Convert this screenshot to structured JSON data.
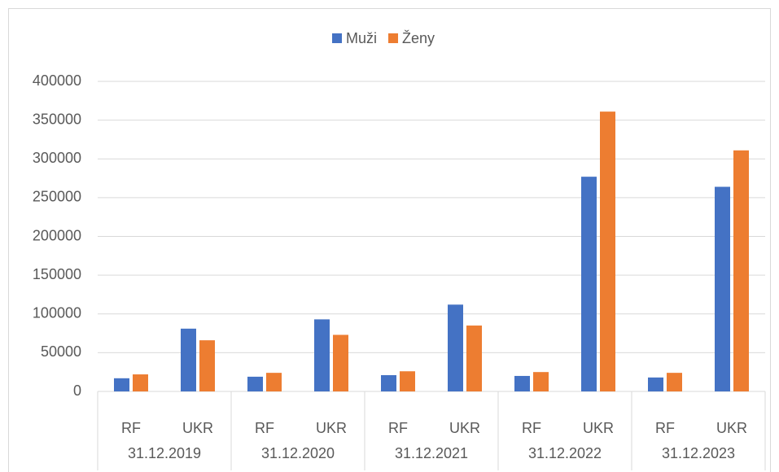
{
  "chart_data": {
    "type": "bar",
    "categories": [
      "RF",
      "UKR",
      "RF",
      "UKR",
      "RF",
      "UKR",
      "RF",
      "UKR",
      "RF",
      "UKR"
    ],
    "groups": [
      "31.12.2019",
      "31.12.2020",
      "31.12.2021",
      "31.12.2022",
      "31.12.2023"
    ],
    "series": [
      {
        "name": "Muži",
        "color": "#4472c4",
        "values": [
          17000,
          81000,
          19000,
          93000,
          21000,
          112000,
          20000,
          277000,
          18000,
          264000
        ]
      },
      {
        "name": "Ženy",
        "color": "#ed7d31",
        "values": [
          22000,
          66000,
          24000,
          73000,
          26000,
          85000,
          25000,
          361000,
          24000,
          311000
        ]
      }
    ],
    "ylim": [
      0,
      400000
    ],
    "yticks": [
      0,
      50000,
      100000,
      150000,
      200000,
      250000,
      300000,
      350000,
      400000
    ],
    "grid": true,
    "legend": "top"
  }
}
